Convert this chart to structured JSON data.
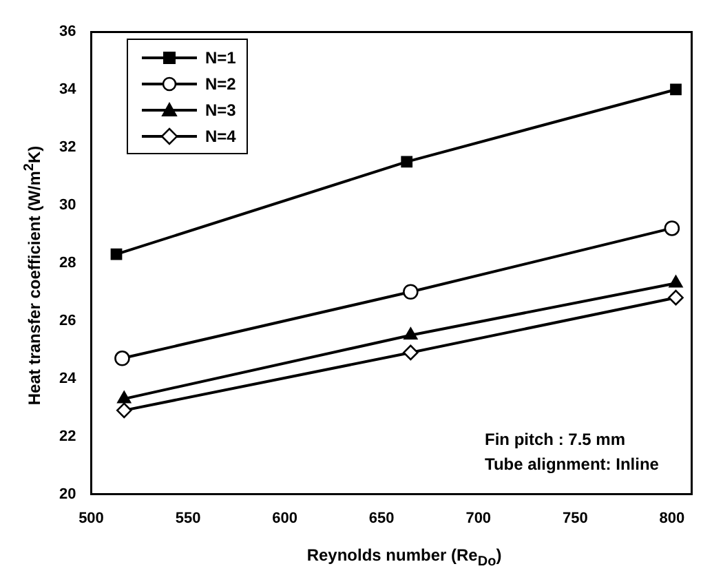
{
  "chart_data": {
    "type": "line",
    "xlabel": "Reynolds number (Re$_{Do}$)",
    "ylabel": "Heat transfer coefficient (W/m$^{2}$K)",
    "xlim": [
      500,
      810
    ],
    "xticks": [
      500,
      550,
      600,
      650,
      700,
      750,
      800
    ],
    "ylim": [
      20,
      36
    ],
    "yticks": [
      20,
      22,
      24,
      26,
      28,
      30,
      32,
      34,
      36
    ],
    "grid": false,
    "legend": "top left",
    "line_style": "solid",
    "annotations": [
      "Fin pitch : 7.5 mm",
      "Tube alignment: Inline"
    ],
    "series": [
      {
        "name": "N=1",
        "color": "#000000",
        "marker": "square",
        "x": [
          513,
          663,
          802
        ],
        "values": [
          28.3,
          31.5,
          34.0
        ]
      },
      {
        "name": "N=2",
        "color": "#000000",
        "marker": "circle",
        "x": [
          516,
          665,
          800
        ],
        "values": [
          24.7,
          27.0,
          29.2
        ]
      },
      {
        "name": "N=3",
        "color": "#000000",
        "marker": "triangle",
        "x": [
          517,
          665,
          802
        ],
        "values": [
          23.3,
          25.5,
          27.3
        ]
      },
      {
        "name": "N=4",
        "color": "#000000",
        "marker": "diamond",
        "x": [
          517,
          665,
          802
        ],
        "values": [
          22.9,
          24.9,
          26.8
        ]
      }
    ]
  }
}
